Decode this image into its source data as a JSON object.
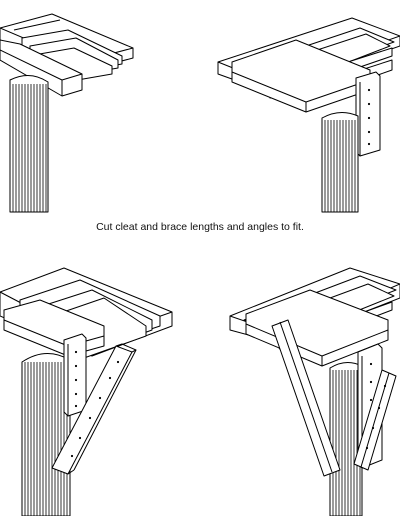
{
  "caption": "Cut cleat and brace lengths and angles to fit.",
  "colors": {
    "line": "#000000",
    "fill": "#ffffff",
    "hole": "#000000"
  },
  "panels": [
    {
      "id": "top-left",
      "view": "column with girder and joists, no cleat"
    },
    {
      "id": "top-right",
      "view": "column with girder, joists and one cleat"
    },
    {
      "id": "bottom-left",
      "view": "column with cleat and one diagonal brace"
    },
    {
      "id": "bottom-right",
      "view": "column with two cleats and two diagonal braces"
    }
  ]
}
